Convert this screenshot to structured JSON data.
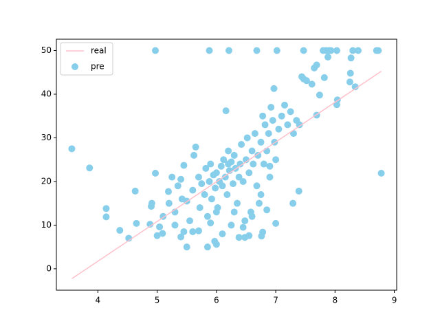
{
  "chart_data": {
    "type": "scatter",
    "xlim": [
      3.3,
      9.04
    ],
    "ylim": [
      -4.9,
      52.6
    ],
    "xticks": [
      4,
      5,
      6,
      7,
      8,
      9
    ],
    "yticks": [
      0,
      10,
      20,
      30,
      40,
      50
    ],
    "grid": false,
    "legend": "upper left",
    "line": {
      "name": "real",
      "color": "#ffc0cb",
      "x": [
        3.561,
        8.78
      ],
      "values": [
        -2.26,
        45.25
      ]
    },
    "series": [
      {
        "name": "pre",
        "color": "#87ceeb",
        "x": [
          3.56,
          3.86,
          4.14,
          4.14,
          4.37,
          4.52,
          4.63,
          4.65,
          4.88,
          4.9,
          4.91,
          4.97,
          4.97,
          5.0,
          5.04,
          5.09,
          5.19,
          5.88,
          6.21,
          6.68,
          7.02,
          7.47,
          7.8,
          7.85,
          7.9,
          7.93,
          8.03,
          8.3,
          8.39,
          8.7,
          8.73,
          8.78,
          8.04,
          8.03,
          8.25,
          8.26,
          8.34,
          8.27,
          7.88,
          7.82,
          7.69,
          7.65,
          7.52,
          7.47,
          7.44,
          7.61,
          7.69,
          7.74,
          7.29,
          7.39,
          7.0,
          6.76,
          6.78,
          6.16,
          6.97,
          5.5,
          5.85,
          5.97,
          6.0,
          6.38,
          6.48,
          6.55,
          5.6,
          5.4,
          5.2,
          5.3,
          5.35,
          5.4,
          5.45,
          5.5,
          5.55,
          5.6,
          5.62,
          5.65,
          5.7,
          5.72,
          5.75,
          5.8,
          5.82,
          5.85,
          5.88,
          5.9,
          5.92,
          5.95,
          5.98,
          6.0,
          6.02,
          6.05,
          6.08,
          6.1,
          6.12,
          6.15,
          6.18,
          6.2,
          6.22,
          6.25,
          6.28,
          6.3,
          6.32,
          6.35,
          6.38,
          6.4,
          6.42,
          6.45,
          6.48,
          6.5,
          6.52,
          6.55,
          6.58,
          6.6,
          6.62,
          6.65,
          6.68,
          6.7,
          6.72,
          6.75,
          6.78,
          6.8,
          6.82,
          6.85,
          6.88,
          6.9,
          6.92,
          6.95,
          6.98,
          7.05,
          7.1,
          7.15,
          7.2,
          7.25,
          7.3,
          7.35,
          7.4,
          5.3,
          5.45,
          5.7,
          5.9,
          6.1,
          6.25,
          6.45,
          6.6,
          6.75,
          6.9,
          6.3,
          6.0,
          5.1,
          5.25,
          5.42,
          6.85,
          7.0,
          6.2
        ],
        "values": [
          27.5,
          23.1,
          13.8,
          11.9,
          8.8,
          7.0,
          17.8,
          10.4,
          10.2,
          14.3,
          15.0,
          21.9,
          50,
          7.6,
          9.6,
          8.1,
          17.7,
          50,
          50,
          50,
          50,
          50,
          50,
          50,
          50,
          50,
          50,
          50,
          50,
          50,
          50,
          21.9,
          38.7,
          37.6,
          42.8,
          44.8,
          41.7,
          48.3,
          48.5,
          43.8,
          46.7,
          46,
          43.1,
          43.5,
          44,
          42.3,
          35.2,
          39.8,
          15,
          17.8,
          10.4,
          7.5,
          8.4,
          36.2,
          41.3,
          5.0,
          5.0,
          6.3,
          5.6,
          7.2,
          7.2,
          7.6,
          8.5,
          7.3,
          15,
          13,
          19,
          20.5,
          23.7,
          15.5,
          11,
          18,
          26,
          27.9,
          21,
          14,
          19.5,
          17,
          23,
          12,
          20,
          24,
          16,
          21.5,
          18.5,
          22,
          14,
          20,
          23.5,
          19,
          25,
          21,
          17,
          27,
          22.5,
          24.5,
          19.5,
          26,
          23,
          15,
          21,
          24,
          28.5,
          20,
          11,
          25,
          30,
          22,
          13,
          27,
          24,
          31,
          19,
          26,
          15,
          29,
          35,
          24,
          33,
          27,
          31,
          23.5,
          37,
          34,
          29,
          32,
          35,
          37.5,
          33,
          36,
          31,
          34,
          33,
          10,
          8.5,
          8.7,
          10.5,
          8,
          10,
          9.5,
          12,
          17,
          21,
          13,
          13,
          12,
          21,
          16,
          13.5,
          25,
          24
        ]
      }
    ]
  }
}
